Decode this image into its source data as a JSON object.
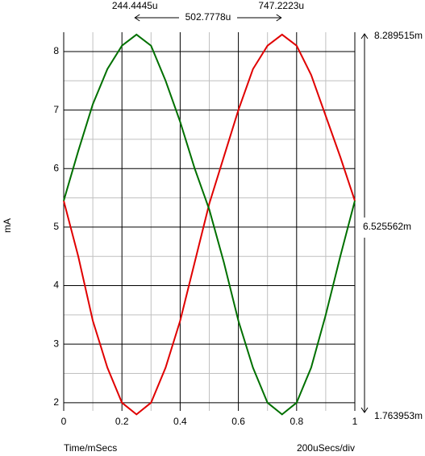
{
  "chart_data": {
    "type": "line",
    "x": [
      0,
      0.05,
      0.1,
      0.15,
      0.2,
      0.25,
      0.3,
      0.35,
      0.4,
      0.45,
      0.5,
      0.55,
      0.6,
      0.65,
      0.7,
      0.75,
      0.8,
      0.85,
      0.9,
      0.95,
      1
    ],
    "series": [
      {
        "color": "#e00000",
        "values": [
          5.45,
          4.5,
          3.4,
          2.6,
          2.0,
          1.8,
          2.0,
          2.6,
          3.4,
          4.4,
          5.4,
          6.2,
          7.0,
          7.7,
          8.1,
          8.29,
          8.1,
          7.6,
          6.9,
          6.2,
          5.45
        ]
      },
      {
        "color": "#007000",
        "values": [
          5.45,
          6.3,
          7.1,
          7.7,
          8.1,
          8.29,
          8.1,
          7.5,
          6.8,
          6.0,
          5.3,
          4.4,
          3.4,
          2.6,
          2.0,
          1.8,
          2.0,
          2.6,
          3.5,
          4.5,
          5.45
        ]
      }
    ],
    "xlim": [
      0,
      1
    ],
    "ylim": [
      1.86,
      8.33
    ],
    "xticks": [
      0,
      0.2,
      0.4,
      0.6,
      0.8,
      1
    ],
    "yticks": [
      2,
      3,
      4,
      5,
      6,
      7,
      8
    ],
    "xgrid_minor": [
      0.1,
      0.3,
      0.5,
      0.7,
      0.9
    ],
    "ygrid_minor": [
      2.5,
      3.5,
      4.5,
      5.5,
      6.5,
      7.5
    ],
    "grid": true,
    "y_label": "mA",
    "x_label": "Time/mSecs",
    "x_scale_label": "200uSecs/div",
    "cursor_x": [
      {
        "value": 0.2444445,
        "label": "244.4445u"
      },
      {
        "value": 0.7472223,
        "label": "747.2223u"
      }
    ],
    "cursor_x_delta": "502.7778u",
    "cursor_y_top": "8.289515m",
    "cursor_y_mid": "6.525562m",
    "cursor_y_bottom": "1.763953m"
  }
}
